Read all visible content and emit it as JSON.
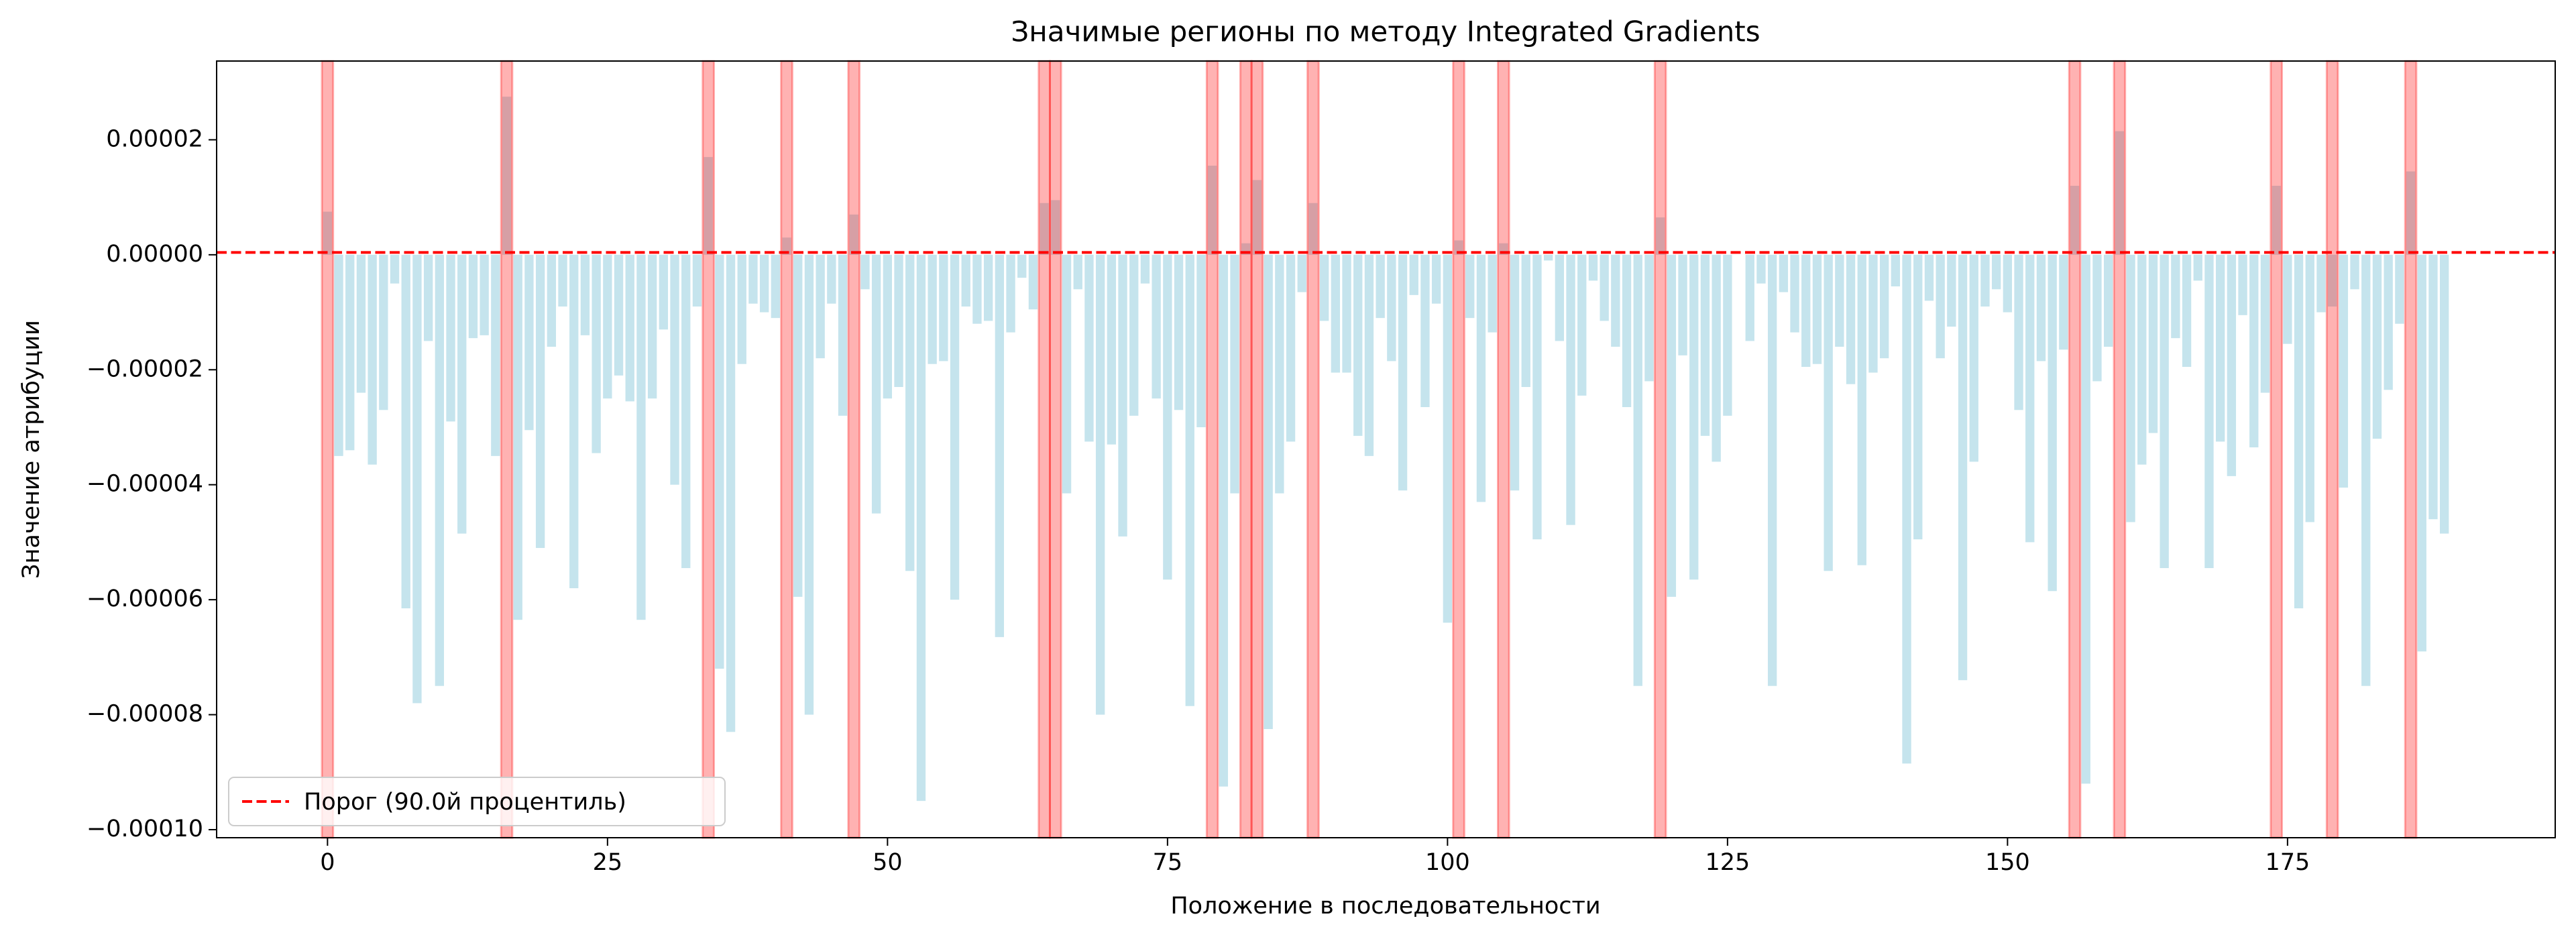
{
  "chart_data": {
    "type": "bar",
    "title": "Значимые регионы по методу Integrated Gradients",
    "x_label": "Положение в последовательности",
    "y_label": "Значение атрибуции",
    "x": [
      0,
      1,
      2,
      3,
      4,
      5,
      6,
      7,
      8,
      9,
      10,
      11,
      12,
      13,
      14,
      15,
      16,
      17,
      18,
      19,
      20,
      21,
      22,
      23,
      24,
      25,
      26,
      27,
      28,
      29,
      30,
      31,
      32,
      33,
      34,
      35,
      36,
      37,
      38,
      39,
      40,
      41,
      42,
      43,
      44,
      45,
      46,
      47,
      48,
      49,
      50,
      51,
      52,
      53,
      54,
      55,
      56,
      57,
      58,
      59,
      60,
      61,
      62,
      63,
      64,
      65,
      66,
      67,
      68,
      69,
      70,
      71,
      72,
      73,
      74,
      75,
      76,
      77,
      78,
      79,
      80,
      81,
      82,
      83,
      84,
      85,
      86,
      87,
      88,
      89,
      90,
      91,
      92,
      93,
      94,
      95,
      96,
      97,
      98,
      99,
      100,
      101,
      102,
      103,
      104,
      105,
      106,
      107,
      108,
      109,
      110,
      111,
      112,
      113,
      114,
      115,
      116,
      117,
      118,
      119,
      120,
      121,
      122,
      123,
      124,
      125,
      126,
      127,
      128,
      129,
      130,
      131,
      132,
      133,
      134,
      135,
      136,
      137,
      138,
      139,
      140,
      141,
      142,
      143,
      144,
      145,
      146,
      147,
      148,
      149,
      150,
      151,
      152,
      153,
      154,
      155,
      156,
      157,
      158,
      159,
      160,
      161,
      162,
      163,
      164,
      165,
      166,
      167,
      168,
      169,
      170,
      171,
      172,
      173,
      174,
      175,
      176,
      177,
      178,
      179,
      180,
      181,
      182,
      183,
      184,
      185,
      186,
      187,
      188,
      189
    ],
    "values": [
      7.5e-06,
      -3.5e-05,
      -3.4e-05,
      -2.4e-05,
      -3.65e-05,
      -2.7e-05,
      -5e-06,
      -6.15e-05,
      -7.8e-05,
      -1.5e-05,
      -7.5e-05,
      -2.9e-05,
      -4.85e-05,
      -1.45e-05,
      -1.4e-05,
      -3.5e-05,
      2.75e-05,
      -6.35e-05,
      -3.05e-05,
      -5.1e-05,
      -1.6e-05,
      -9e-06,
      -5.8e-05,
      -1.4e-05,
      -3.45e-05,
      -2.5e-05,
      -2.1e-05,
      -2.55e-05,
      -6.35e-05,
      -2.5e-05,
      -1.3e-05,
      -4e-05,
      -5.45e-05,
      -9e-06,
      1.7e-05,
      -7.2e-05,
      -8.3e-05,
      -1.9e-05,
      -8.5e-06,
      -1e-05,
      -1.1e-05,
      3e-06,
      -5.95e-05,
      -8e-05,
      -1.8e-05,
      -8.5e-06,
      -2.8e-05,
      7e-06,
      -6e-06,
      -4.5e-05,
      -2.5e-05,
      -2.3e-05,
      -5.5e-05,
      -9.5e-05,
      -1.9e-05,
      -1.85e-05,
      -6e-05,
      -9e-06,
      -1.2e-05,
      -1.15e-05,
      -6.65e-05,
      -1.35e-05,
      -4e-06,
      -9.5e-06,
      9e-06,
      9.5e-06,
      -4.15e-05,
      -6e-06,
      -3.25e-05,
      -8e-05,
      -3.3e-05,
      -4.9e-05,
      -2.8e-05,
      -5e-06,
      -2.5e-05,
      -5.65e-05,
      -2.7e-05,
      -7.85e-05,
      -3e-05,
      1.55e-05,
      -9.25e-05,
      -4.15e-05,
      2e-06,
      1.3e-05,
      -8.25e-05,
      -4.15e-05,
      -3.25e-05,
      -6.5e-06,
      9e-06,
      -1.15e-05,
      -2.05e-05,
      -2.05e-05,
      -3.15e-05,
      -3.5e-05,
      -1.1e-05,
      -1.85e-05,
      -4.1e-05,
      -7e-06,
      -2.65e-05,
      -8.5e-06,
      -6.4e-05,
      2.5e-06,
      -1.1e-05,
      -4.3e-05,
      -1.35e-05,
      2e-06,
      -4.1e-05,
      -2.3e-05,
      -4.95e-05,
      -1e-06,
      -1.5e-05,
      -4.7e-05,
      -2.45e-05,
      -4.5e-06,
      -1.15e-05,
      -1.6e-05,
      -2.65e-05,
      -7.5e-05,
      -2.2e-05,
      6.5e-06,
      -5.95e-05,
      -1.75e-05,
      -5.65e-05,
      -3.15e-05,
      -3.6e-05,
      -2.8e-05,
      0,
      -1.5e-05,
      -5e-06,
      -7.5e-05,
      -6.5e-06,
      -1.35e-05,
      -1.95e-05,
      -1.9e-05,
      -5.5e-05,
      -1.6e-05,
      -2.25e-05,
      -5.4e-05,
      -2.05e-05,
      -1.8e-05,
      -5.5e-06,
      -8.85e-05,
      -4.95e-05,
      -8e-06,
      -1.8e-05,
      -1.25e-05,
      -7.4e-05,
      -3.6e-05,
      -9e-06,
      -6e-06,
      -1e-05,
      -2.7e-05,
      -5e-05,
      -1.85e-05,
      -5.85e-05,
      -1.65e-05,
      1.2e-05,
      -9.2e-05,
      -2.2e-05,
      -1.6e-05,
      2.15e-05,
      -4.65e-05,
      -3.65e-05,
      -3.1e-05,
      -5.45e-05,
      -1.45e-05,
      -1.95e-05,
      -4.5e-06,
      -5.45e-05,
      -3.25e-05,
      -3.85e-05,
      -1.05e-05,
      -3.35e-05,
      -2.4e-05,
      1.2e-05,
      -1.55e-05,
      -6.15e-05,
      -4.65e-05,
      -1e-05,
      -9e-06,
      -4.05e-05,
      -6e-06,
      -7.5e-05,
      -3.2e-05,
      -2.35e-05,
      -1.2e-05,
      1.45e-05,
      -6.9e-05,
      -4.6e-05,
      -4.85e-05
    ],
    "color": "#add8e6",
    "highlights": [
      0,
      16,
      34,
      41,
      47,
      64,
      65,
      79,
      82,
      83,
      88,
      101,
      105,
      119,
      156,
      160,
      174,
      179,
      186
    ],
    "highlight_color": "#ff0000",
    "threshold": 4e-07,
    "threshold_name": "Порог (90.0й процентиль)",
    "threshold_color": "#ff0000",
    "legend": "lower left",
    "xlim": [
      -9.9,
      198.9
    ],
    "ylim": [
      -0.0001014,
      3.37e-05
    ],
    "xticks": [
      0,
      25,
      50,
      75,
      100,
      125,
      150,
      175
    ],
    "yticks": [
      {
        "value": -0.0001,
        "label": "−0.00010"
      },
      {
        "value": -8e-05,
        "label": "−0.00008"
      },
      {
        "value": -6e-05,
        "label": "−0.00006"
      },
      {
        "value": -4e-05,
        "label": "−0.00004"
      },
      {
        "value": -2e-05,
        "label": "−0.00002"
      },
      {
        "value": 0,
        "label": "0.00000"
      },
      {
        "value": 2e-05,
        "label": "0.00002"
      }
    ]
  }
}
